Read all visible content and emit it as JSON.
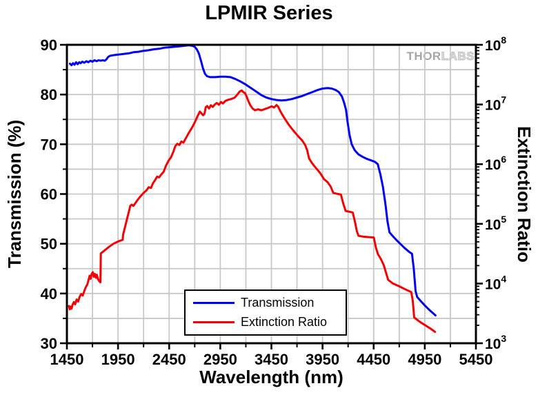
{
  "title": "LPMIR Series",
  "watermark": {
    "thor": "THOR",
    "labs": "LABS"
  },
  "legend": {
    "items": [
      {
        "label": "Transmission",
        "color": "#0000f2"
      },
      {
        "label": "Extinction Ratio",
        "color": "#f50000"
      }
    ]
  },
  "chart_data": {
    "type": "line",
    "title": "LPMIR Series",
    "xlabel": "Wavelength (nm)",
    "ylabel_left": "Transmission (%)",
    "ylabel_right": "Extinction Ratio",
    "x_axis": {
      "range": [
        1450,
        5450
      ],
      "major_ticks": [
        1450,
        1950,
        2450,
        2950,
        3450,
        3950,
        4450,
        4950,
        5450
      ],
      "minor_step": 250
    },
    "y_axis_left": {
      "range": [
        30,
        90
      ],
      "major_ticks": [
        30,
        40,
        50,
        60,
        70,
        80,
        90
      ],
      "minor_step": 5
    },
    "y_axis_right": {
      "scale": "log",
      "base_label": "10",
      "range_exponents": [
        3,
        8
      ],
      "decade_ticks": [
        3,
        4,
        5,
        6,
        7,
        8
      ]
    },
    "grid": {
      "color": "#c8c8c8",
      "x_step": 250,
      "y_step": 5,
      "on": true
    },
    "legend_position": "bottom-center",
    "series": [
      {
        "name": "Transmission",
        "axis": "left",
        "color": "#0000f2",
        "points": [
          [
            1480,
            86.2
          ],
          [
            1495,
            85.9
          ],
          [
            1510,
            86.3
          ],
          [
            1525,
            86.0
          ],
          [
            1540,
            86.5
          ],
          [
            1555,
            86.1
          ],
          [
            1570,
            86.5
          ],
          [
            1585,
            86.3
          ],
          [
            1600,
            86.6
          ],
          [
            1620,
            86.4
          ],
          [
            1640,
            86.7
          ],
          [
            1660,
            86.5
          ],
          [
            1680,
            86.8
          ],
          [
            1700,
            86.6
          ],
          [
            1720,
            86.9
          ],
          [
            1740,
            86.7
          ],
          [
            1760,
            86.9
          ],
          [
            1780,
            86.8
          ],
          [
            1800,
            86.9
          ],
          [
            1820,
            86.8
          ],
          [
            1838,
            87.1
          ],
          [
            1855,
            87.6
          ],
          [
            1875,
            87.8
          ],
          [
            1900,
            87.9
          ],
          [
            1940,
            88.0
          ],
          [
            1980,
            88.1
          ],
          [
            2020,
            88.2
          ],
          [
            2060,
            88.3
          ],
          [
            2100,
            88.5
          ],
          [
            2150,
            88.6
          ],
          [
            2200,
            88.8
          ],
          [
            2250,
            88.9
          ],
          [
            2300,
            89.1
          ],
          [
            2350,
            89.2
          ],
          [
            2400,
            89.4
          ],
          [
            2450,
            89.5
          ],
          [
            2500,
            89.6
          ],
          [
            2550,
            89.7
          ],
          [
            2600,
            89.8
          ],
          [
            2640,
            89.9
          ],
          [
            2675,
            89.8
          ],
          [
            2700,
            89.6
          ],
          [
            2720,
            89.1
          ],
          [
            2740,
            88.3
          ],
          [
            2760,
            86.9
          ],
          [
            2780,
            85.3
          ],
          [
            2800,
            84.2
          ],
          [
            2820,
            83.7
          ],
          [
            2850,
            83.5
          ],
          [
            2900,
            83.5
          ],
          [
            2950,
            83.6
          ],
          [
            3000,
            83.6
          ],
          [
            3050,
            83.5
          ],
          [
            3100,
            83.1
          ],
          [
            3150,
            82.6
          ],
          [
            3200,
            82.0
          ],
          [
            3250,
            81.3
          ],
          [
            3300,
            80.6
          ],
          [
            3350,
            79.9
          ],
          [
            3400,
            79.4
          ],
          [
            3450,
            79.1
          ],
          [
            3500,
            78.9
          ],
          [
            3550,
            78.8
          ],
          [
            3600,
            78.9
          ],
          [
            3650,
            79.1
          ],
          [
            3700,
            79.4
          ],
          [
            3750,
            79.7
          ],
          [
            3800,
            80.1
          ],
          [
            3850,
            80.5
          ],
          [
            3900,
            80.9
          ],
          [
            3950,
            81.2
          ],
          [
            4000,
            81.3
          ],
          [
            4040,
            81.2
          ],
          [
            4080,
            80.9
          ],
          [
            4110,
            80.5
          ],
          [
            4140,
            79.6
          ],
          [
            4160,
            78.4
          ],
          [
            4180,
            76.9
          ],
          [
            4195,
            74.5
          ],
          [
            4215,
            71.8
          ],
          [
            4235,
            70.0
          ],
          [
            4265,
            68.8
          ],
          [
            4300,
            68.0
          ],
          [
            4340,
            67.5
          ],
          [
            4380,
            67.1
          ],
          [
            4420,
            66.8
          ],
          [
            4460,
            66.5
          ],
          [
            4490,
            66.0
          ],
          [
            4515,
            64.0
          ],
          [
            4540,
            61.5
          ],
          [
            4565,
            58.0
          ],
          [
            4585,
            54.5
          ],
          [
            4605,
            52.3
          ],
          [
            4630,
            51.7
          ],
          [
            4670,
            50.8
          ],
          [
            4710,
            50.0
          ],
          [
            4755,
            49.1
          ],
          [
            4795,
            48.4
          ],
          [
            4825,
            48.0
          ],
          [
            4842,
            45.0
          ],
          [
            4860,
            40.5
          ],
          [
            4875,
            39.3
          ],
          [
            4905,
            38.6
          ],
          [
            4950,
            37.6
          ],
          [
            5000,
            36.6
          ],
          [
            5055,
            35.6
          ]
        ]
      },
      {
        "name": "Extinction Ratio",
        "axis": "right",
        "color": "#f50000",
        "points": [
          [
            1470,
            4200.0
          ],
          [
            1478,
            3700.0
          ],
          [
            1487,
            4100.0
          ],
          [
            1496,
            3800.0
          ],
          [
            1505,
            4400.0
          ],
          [
            1518,
            4900.0
          ],
          [
            1530,
            4500.0
          ],
          [
            1545,
            5400.0
          ],
          [
            1560,
            5000.0
          ],
          [
            1575,
            6000.0
          ],
          [
            1590,
            6700.0
          ],
          [
            1605,
            6300.0
          ],
          [
            1620,
            7500.0
          ],
          [
            1635,
            8700.0
          ],
          [
            1650,
            9700.0
          ],
          [
            1662,
            11500.0
          ],
          [
            1672,
            13500.0
          ],
          [
            1682,
            12000.0
          ],
          [
            1692,
            14500.0
          ],
          [
            1703,
            15500.0
          ],
          [
            1713,
            13000.0
          ],
          [
            1723,
            14500.0
          ],
          [
            1733,
            12500.0
          ],
          [
            1743,
            14000.0
          ],
          [
            1753,
            12000.0
          ],
          [
            1765,
            11000.0
          ],
          [
            1778,
            10500.0
          ],
          [
            1782,
            32000.0
          ],
          [
            1810,
            35000.0
          ],
          [
            1860,
            41000.0
          ],
          [
            1910,
            47000.0
          ],
          [
            1955,
            51000.0
          ],
          [
            1996,
            54000.0
          ],
          [
            2000,
            66000.0
          ],
          [
            2018,
            88000.0
          ],
          [
            2035,
            115000.0
          ],
          [
            2052,
            150000.0
          ],
          [
            2070,
            200000.0
          ],
          [
            2085,
            210000.0
          ],
          [
            2100,
            200000.0
          ],
          [
            2118,
            220000.0
          ],
          [
            2140,
            250000.0
          ],
          [
            2170,
            290000.0
          ],
          [
            2200,
            330000.0
          ],
          [
            2225,
            360000.0
          ],
          [
            2250,
            410000.0
          ],
          [
            2272,
            400000.0
          ],
          [
            2292,
            480000.0
          ],
          [
            2312,
            540000.0
          ],
          [
            2332,
            620000.0
          ],
          [
            2352,
            600000.0
          ],
          [
            2372,
            670000.0
          ],
          [
            2395,
            740000.0
          ],
          [
            2420,
            950000.0
          ],
          [
            2445,
            1150000.0
          ],
          [
            2468,
            1300000.0
          ],
          [
            2490,
            1600000.0
          ],
          [
            2510,
            2000000.0
          ],
          [
            2530,
            2200000.0
          ],
          [
            2550,
            2100000.0
          ],
          [
            2570,
            2400000.0
          ],
          [
            2590,
            2300000.0
          ],
          [
            2612,
            2700000.0
          ],
          [
            2640,
            3300000.0
          ],
          [
            2670,
            4000000.0
          ],
          [
            2700,
            5000000.0
          ],
          [
            2726,
            6300000.0
          ],
          [
            2750,
            7600000.0
          ],
          [
            2766,
            7100000.0
          ],
          [
            2782,
            6600000.0
          ],
          [
            2796,
            7000000.0
          ],
          [
            2808,
            9000000.0
          ],
          [
            2822,
            9400000.0
          ],
          [
            2840,
            8600000.0
          ],
          [
            2858,
            9700000.0
          ],
          [
            2876,
            9100000.0
          ],
          [
            2896,
            10000000.0
          ],
          [
            2916,
            10600000.0
          ],
          [
            2936,
            9900000.0
          ],
          [
            2956,
            11000000.0
          ],
          [
            2976,
            10400000.0
          ],
          [
            3000,
            11500000.0
          ],
          [
            3030,
            12000000.0
          ],
          [
            3060,
            12400000.0
          ],
          [
            3090,
            13000000.0
          ],
          [
            3115,
            14500000.0
          ],
          [
            3140,
            16500000.0
          ],
          [
            3160,
            17200000.0
          ],
          [
            3176,
            16000000.0
          ],
          [
            3192,
            15500000.0
          ],
          [
            3208,
            13500000.0
          ],
          [
            3224,
            11500000.0
          ],
          [
            3242,
            9800000.0
          ],
          [
            3265,
            8600000.0
          ],
          [
            3290,
            8000000.0
          ],
          [
            3320,
            8300000.0
          ],
          [
            3352,
            8000000.0
          ],
          [
            3386,
            8400000.0
          ],
          [
            3420,
            8800000.0
          ],
          [
            3452,
            9300000.0
          ],
          [
            3476,
            8900000.0
          ],
          [
            3500,
            9800000.0
          ],
          [
            3516,
            9200000.0
          ],
          [
            3536,
            7800000.0
          ],
          [
            3560,
            6600000.0
          ],
          [
            3586,
            5600000.0
          ],
          [
            3615,
            4700000.0
          ],
          [
            3646,
            4000000.0
          ],
          [
            3680,
            3400000.0
          ],
          [
            3715,
            2900000.0
          ],
          [
            3750,
            2500000.0
          ],
          [
            3780,
            2100000.0
          ],
          [
            3800,
            1700000.0
          ],
          [
            3818,
            1250000.0
          ],
          [
            3846,
            1050000.0
          ],
          [
            3876,
            900000.0
          ],
          [
            3902,
            800000.0
          ],
          [
            3932,
            690000.0
          ],
          [
            3965,
            560000.0
          ],
          [
            4000,
            500000.0
          ],
          [
            4030,
            420000.0
          ],
          [
            4056,
            330000.0
          ],
          [
            4090,
            320000.0
          ],
          [
            4130,
            310000.0
          ],
          [
            4152,
            220000.0
          ],
          [
            4176,
            165000.0
          ],
          [
            4210,
            160000.0
          ],
          [
            4245,
            155000.0
          ],
          [
            4266,
            110000.0
          ],
          [
            4286,
            75000.0
          ],
          [
            4302,
            63000.0
          ],
          [
            4350,
            61000.0
          ],
          [
            4400,
            60000.0
          ],
          [
            4452,
            59000.0
          ],
          [
            4472,
            40000.0
          ],
          [
            4492,
            31000.0
          ],
          [
            4520,
            26000.0
          ],
          [
            4550,
            20000.0
          ],
          [
            4572,
            15000.0
          ],
          [
            4592,
            11500.0
          ],
          [
            4640,
            10000.0
          ],
          [
            4700,
            9000.0
          ],
          [
            4760,
            8000.0
          ],
          [
            4818,
            7200.0
          ],
          [
            4832,
            5200.0
          ],
          [
            4846,
            2700.0
          ],
          [
            4885,
            2400.0
          ],
          [
            4925,
            2150.0
          ],
          [
            4965,
            1950.0
          ],
          [
            5008,
            1750.0
          ],
          [
            5050,
            1550.0
          ]
        ]
      }
    ]
  }
}
